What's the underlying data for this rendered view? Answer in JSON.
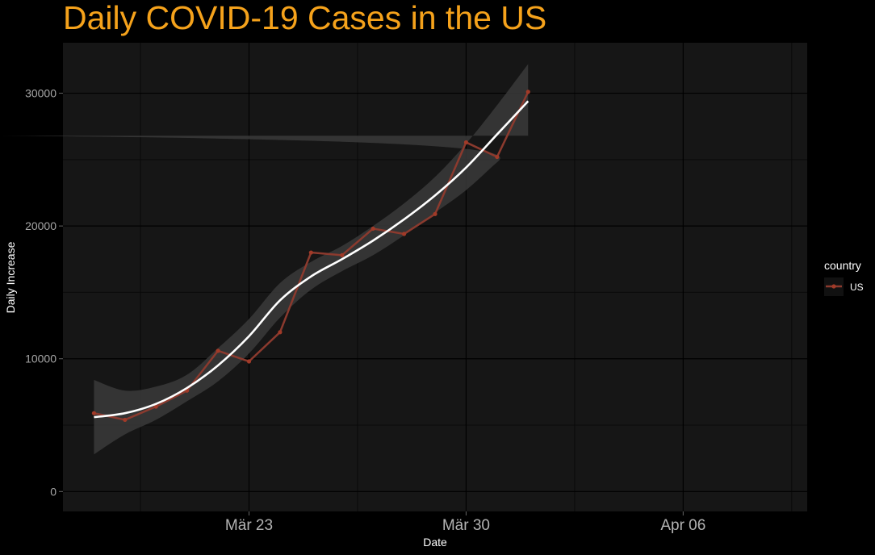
{
  "chart_data": {
    "type": "line",
    "title": "Daily COVID-19 Cases in the US",
    "xlabel": "Date",
    "ylabel": "Daily Increase",
    "legend": {
      "title": "country",
      "position": "right"
    },
    "x_ticks": [
      {
        "label": "Mär 23",
        "date": "2020-03-23"
      },
      {
        "label": "Mär 30",
        "date": "2020-03-30"
      },
      {
        "label": "Apr 06",
        "date": "2020-04-06"
      }
    ],
    "y_ticks": [
      0,
      10000,
      20000,
      30000
    ],
    "xlim": [
      "2020-03-17",
      "2020-04-10"
    ],
    "ylim": [
      -1500,
      33800
    ],
    "grid": true,
    "series": [
      {
        "name": "US",
        "color": "#8b3a2e",
        "points": [
          {
            "date": "2020-03-18",
            "value": 5900
          },
          {
            "date": "2020-03-19",
            "value": 5400
          },
          {
            "date": "2020-03-20",
            "value": 6400
          },
          {
            "date": "2020-03-21",
            "value": 7600
          },
          {
            "date": "2020-03-22",
            "value": 10600
          },
          {
            "date": "2020-03-23",
            "value": 9800
          },
          {
            "date": "2020-03-24",
            "value": 12000
          },
          {
            "date": "2020-03-25",
            "value": 18000
          },
          {
            "date": "2020-03-26",
            "value": 17800
          },
          {
            "date": "2020-03-27",
            "value": 19800
          },
          {
            "date": "2020-03-28",
            "value": 19400
          },
          {
            "date": "2020-03-29",
            "value": 20900
          },
          {
            "date": "2020-03-30",
            "value": 26300
          },
          {
            "date": "2020-03-31",
            "value": 25200
          },
          {
            "date": "2020-04-01",
            "value": 30100
          }
        ]
      }
    ],
    "smooth": {
      "color": "#ffffff",
      "ribbon_color": "#3a3a3a",
      "fit": [
        5600,
        5900,
        6600,
        7800,
        9500,
        11700,
        14400,
        16200,
        17500,
        18900,
        20500,
        22300,
        24400,
        26900,
        29400
      ],
      "lower": [
        2800,
        4300,
        5400,
        6800,
        8300,
        10400,
        13100,
        15200,
        16600,
        17800,
        19300,
        21000,
        22700,
        24800,
        26800
      ],
      "upper": [
        8400,
        7600,
        7900,
        8800,
        10800,
        13000,
        15700,
        17300,
        18500,
        20000,
        21700,
        23700,
        26200,
        29100,
        32200
      ]
    },
    "colors": {
      "background": "#000000",
      "panel": "#161616",
      "grid_major": "#000000",
      "grid_minor": "#0a0a0a",
      "title": "#f5a21b"
    }
  }
}
